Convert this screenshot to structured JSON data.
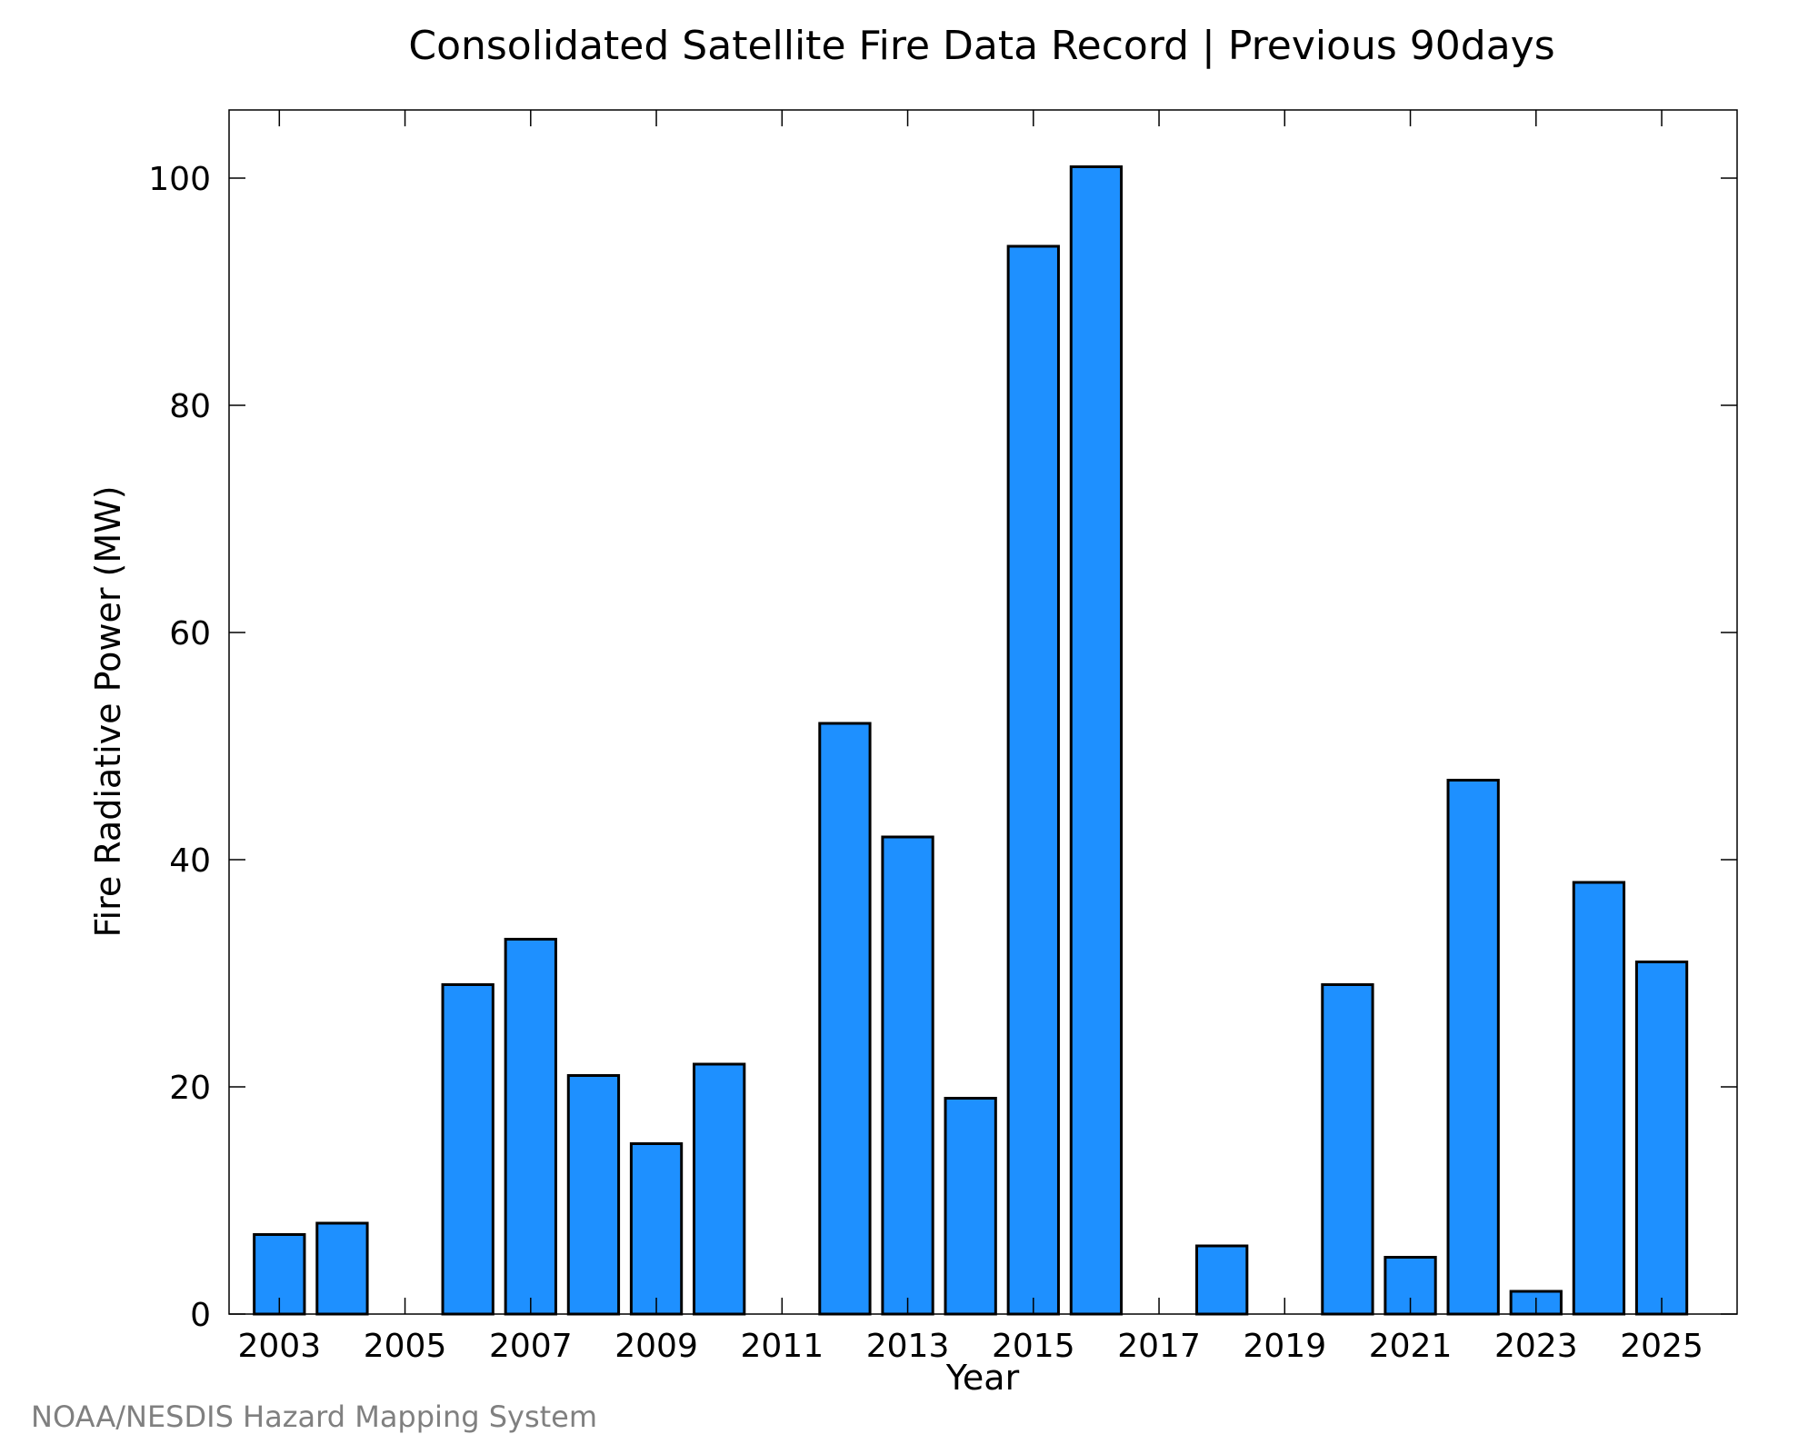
{
  "chart_data": {
    "type": "bar",
    "title": "Consolidated Satellite Fire Data Record | Previous 90days",
    "xlabel": "Year",
    "ylabel": "Fire Radiative Power (MW)",
    "categories": [
      2003,
      2004,
      2005,
      2006,
      2007,
      2008,
      2009,
      2010,
      2011,
      2012,
      2013,
      2014,
      2015,
      2016,
      2017,
      2018,
      2019,
      2020,
      2021,
      2022,
      2023,
      2024,
      2025
    ],
    "values": [
      7,
      8,
      0,
      29,
      33,
      21,
      15,
      22,
      0,
      52,
      42,
      19,
      94,
      101,
      0,
      6,
      0,
      29,
      5,
      47,
      2,
      38,
      31
    ],
    "x_tick_labels": [
      "2003",
      "2005",
      "2007",
      "2009",
      "2011",
      "2013",
      "2015",
      "2017",
      "2019",
      "2021",
      "2023",
      "2025"
    ],
    "x_tick_years": [
      2003,
      2005,
      2007,
      2009,
      2011,
      2013,
      2015,
      2017,
      2019,
      2021,
      2023,
      2025
    ],
    "y_ticks": [
      0,
      20,
      40,
      60,
      80,
      100
    ],
    "y_tick_labels": [
      "0",
      "20",
      "40",
      "60",
      "80",
      "100"
    ],
    "xlim": [
      2002.2,
      2026.2
    ],
    "ylim": [
      0,
      106
    ],
    "grid": false,
    "bar_color": "#1e90ff",
    "edge_color": "#000000"
  },
  "footer": {
    "credit": "NOAA/NESDIS Hazard Mapping System"
  }
}
